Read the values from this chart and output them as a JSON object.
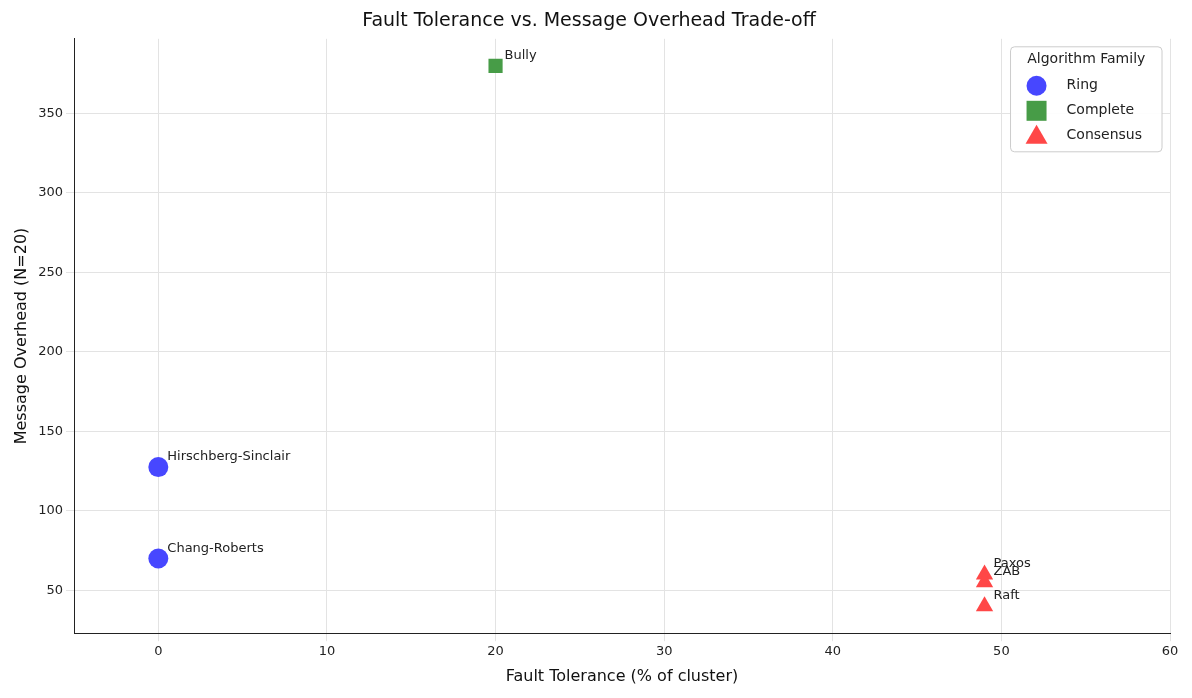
{
  "chart_data": {
    "type": "scatter",
    "title": "Fault Tolerance vs. Message Overhead Trade-off",
    "xlabel": "Fault Tolerance (% of cluster)",
    "ylabel": "Message Overhead (N=20)",
    "legend_title": "Algorithm Family",
    "legend": "top right",
    "grid": true,
    "xlim": [
      -5,
      60
    ],
    "xticks": [
      0,
      10,
      20,
      30,
      40,
      50,
      60
    ],
    "ylim": [
      23,
      397
    ],
    "yticks": [
      50,
      100,
      150,
      200,
      250,
      300,
      350
    ],
    "series": [
      {
        "name": "Ring",
        "color": "#4747ff",
        "marker": "circle",
        "x": [
          0,
          0
        ],
        "values": [
          127.5,
          70
        ]
      },
      {
        "name": "Complete",
        "color": "#479c47",
        "marker": "square",
        "x": [
          20
        ],
        "values": [
          380
        ]
      },
      {
        "name": "Consensus",
        "color": "#ff4747",
        "marker": "triangle",
        "x": [
          49,
          49,
          49
        ],
        "values": [
          60,
          55,
          40
        ]
      }
    ],
    "annotations": [
      {
        "text": "Hirschberg-Sinclair",
        "x": 0,
        "y": 127.5
      },
      {
        "text": "Chang-Roberts",
        "x": 0,
        "y": 70
      },
      {
        "text": "Bully",
        "x": 20,
        "y": 380
      },
      {
        "text": "Paxos",
        "x": 49,
        "y": 60
      },
      {
        "text": "ZAB",
        "x": 49,
        "y": 55
      },
      {
        "text": "Raft",
        "x": 49,
        "y": 40
      }
    ]
  }
}
